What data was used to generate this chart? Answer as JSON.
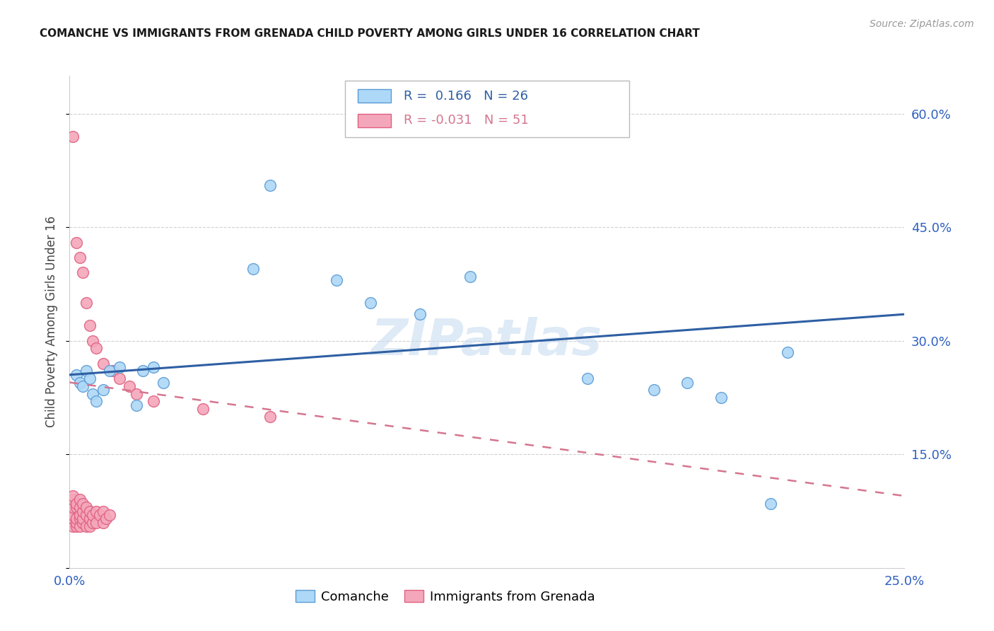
{
  "title": "COMANCHE VS IMMIGRANTS FROM GRENADA CHILD POVERTY AMONG GIRLS UNDER 16 CORRELATION CHART",
  "source": "Source: ZipAtlas.com",
  "ylabel": "Child Poverty Among Girls Under 16",
  "xlim": [
    0,
    0.25
  ],
  "ylim": [
    0,
    0.65
  ],
  "xtick_vals": [
    0.0,
    0.05,
    0.1,
    0.15,
    0.2,
    0.25
  ],
  "xtick_labels": [
    "0.0%",
    "",
    "",
    "",
    "",
    "25.0%"
  ],
  "ytick_vals": [
    0.0,
    0.15,
    0.3,
    0.45,
    0.6
  ],
  "ytick_labels": [
    "",
    "15.0%",
    "30.0%",
    "45.0%",
    "60.0%"
  ],
  "color_comanche_fill": "#add8f7",
  "color_comanche_edge": "#5b9bd5",
  "color_grenada_fill": "#f4a7bb",
  "color_grenada_edge": "#e06080",
  "color_line_comanche": "#2e5fa3",
  "color_line_grenada": "#d4758e",
  "watermark": "ZIPatlas",
  "watermark_color": "#c8ddf0",
  "grid_color": "#d0d0d0",
  "background_color": "#ffffff",
  "comanche_x": [
    0.002,
    0.003,
    0.004,
    0.005,
    0.006,
    0.007,
    0.008,
    0.01,
    0.012,
    0.015,
    0.02,
    0.022,
    0.025,
    0.028,
    0.055,
    0.06,
    0.08,
    0.09,
    0.105,
    0.12,
    0.155,
    0.175,
    0.185,
    0.195,
    0.21,
    0.215
  ],
  "comanche_y": [
    0.255,
    0.245,
    0.24,
    0.26,
    0.25,
    0.23,
    0.22,
    0.235,
    0.26,
    0.265,
    0.215,
    0.26,
    0.265,
    0.245,
    0.395,
    0.505,
    0.38,
    0.35,
    0.335,
    0.385,
    0.25,
    0.235,
    0.245,
    0.225,
    0.085,
    0.285
  ],
  "grenada_x": [
    0.001,
    0.001,
    0.001,
    0.001,
    0.001,
    0.001,
    0.001,
    0.002,
    0.002,
    0.002,
    0.002,
    0.002,
    0.002,
    0.003,
    0.003,
    0.003,
    0.003,
    0.003,
    0.003,
    0.004,
    0.004,
    0.004,
    0.004,
    0.004,
    0.005,
    0.005,
    0.005,
    0.005,
    0.006,
    0.006,
    0.006,
    0.006,
    0.007,
    0.007,
    0.007,
    0.008,
    0.008,
    0.008,
    0.009,
    0.01,
    0.01,
    0.01,
    0.011,
    0.012,
    0.013,
    0.015,
    0.018,
    0.02,
    0.025,
    0.04,
    0.06
  ],
  "grenada_y": [
    0.055,
    0.065,
    0.07,
    0.08,
    0.09,
    0.095,
    0.57,
    0.055,
    0.06,
    0.065,
    0.08,
    0.085,
    0.43,
    0.055,
    0.065,
    0.07,
    0.08,
    0.09,
    0.41,
    0.06,
    0.065,
    0.075,
    0.085,
    0.39,
    0.055,
    0.07,
    0.08,
    0.35,
    0.055,
    0.065,
    0.075,
    0.32,
    0.06,
    0.07,
    0.3,
    0.06,
    0.075,
    0.29,
    0.07,
    0.06,
    0.075,
    0.27,
    0.065,
    0.07,
    0.26,
    0.25,
    0.24,
    0.23,
    0.22,
    0.21,
    0.2
  ],
  "trendline_comanche_x0": 0.0,
  "trendline_comanche_x1": 0.25,
  "trendline_comanche_y0": 0.255,
  "trendline_comanche_y1": 0.335,
  "trendline_grenada_x0": 0.0,
  "trendline_grenada_x1": 0.25,
  "trendline_grenada_y0": 0.245,
  "trendline_grenada_y1": 0.095
}
